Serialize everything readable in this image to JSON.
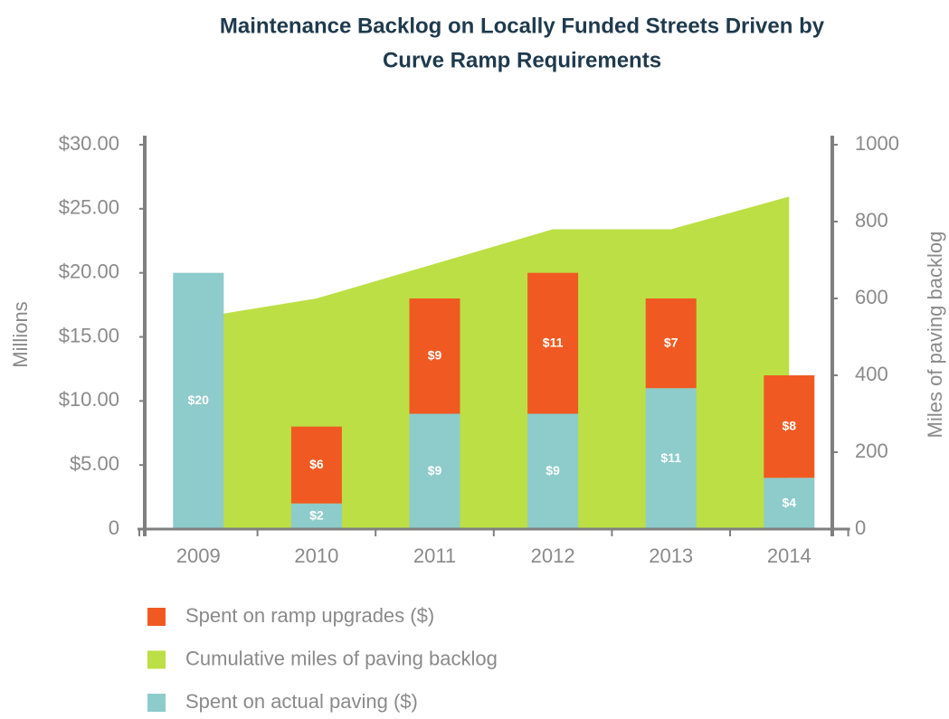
{
  "chart_data": {
    "type": "bar",
    "title": [
      "Maintenance Backlog on Locally Funded Streets Driven by",
      "Curve Ramp Requirements"
    ],
    "categories": [
      "2009",
      "2010",
      "2011",
      "2012",
      "2013",
      "2014"
    ],
    "ylabel": "Millions",
    "y2label": "Miles of paving backlog",
    "ylim": [
      0,
      30
    ],
    "yticks": [
      0,
      {
        "value": 5,
        "label": "$5.00"
      },
      {
        "value": 10,
        "label": "$10.00"
      },
      {
        "value": 15,
        "label": "$15.00"
      },
      {
        "value": 20,
        "label": "$20.00"
      },
      {
        "value": 25,
        "label": "$25.00"
      },
      {
        "value": 30,
        "label": "$30.00"
      }
    ],
    "y2lim": [
      0,
      1000
    ],
    "y2ticks": [
      0,
      200,
      400,
      600,
      800,
      1000
    ],
    "series": [
      {
        "name": "Spent on ramp upgrades ($)",
        "type": "bar",
        "color": "#f05a22",
        "values": [
          null,
          6,
          9,
          11,
          7,
          8
        ],
        "value_labels": [
          null,
          "$6",
          "$9",
          "$11",
          "$7",
          "$8"
        ]
      },
      {
        "name": "Cumulative miles of paving backlog",
        "type": "area",
        "axis": "y2",
        "color": "#bcdf45",
        "values": [
          550,
          600,
          690,
          780,
          780,
          865
        ]
      },
      {
        "name": "Spent on actual paving ($)",
        "type": "bar",
        "color": "#8ecbcb",
        "values": [
          20,
          2,
          9,
          9,
          11,
          4
        ],
        "value_labels": [
          "$20",
          "$2",
          "$9",
          "$9",
          "$11",
          "$4"
        ]
      }
    ]
  }
}
